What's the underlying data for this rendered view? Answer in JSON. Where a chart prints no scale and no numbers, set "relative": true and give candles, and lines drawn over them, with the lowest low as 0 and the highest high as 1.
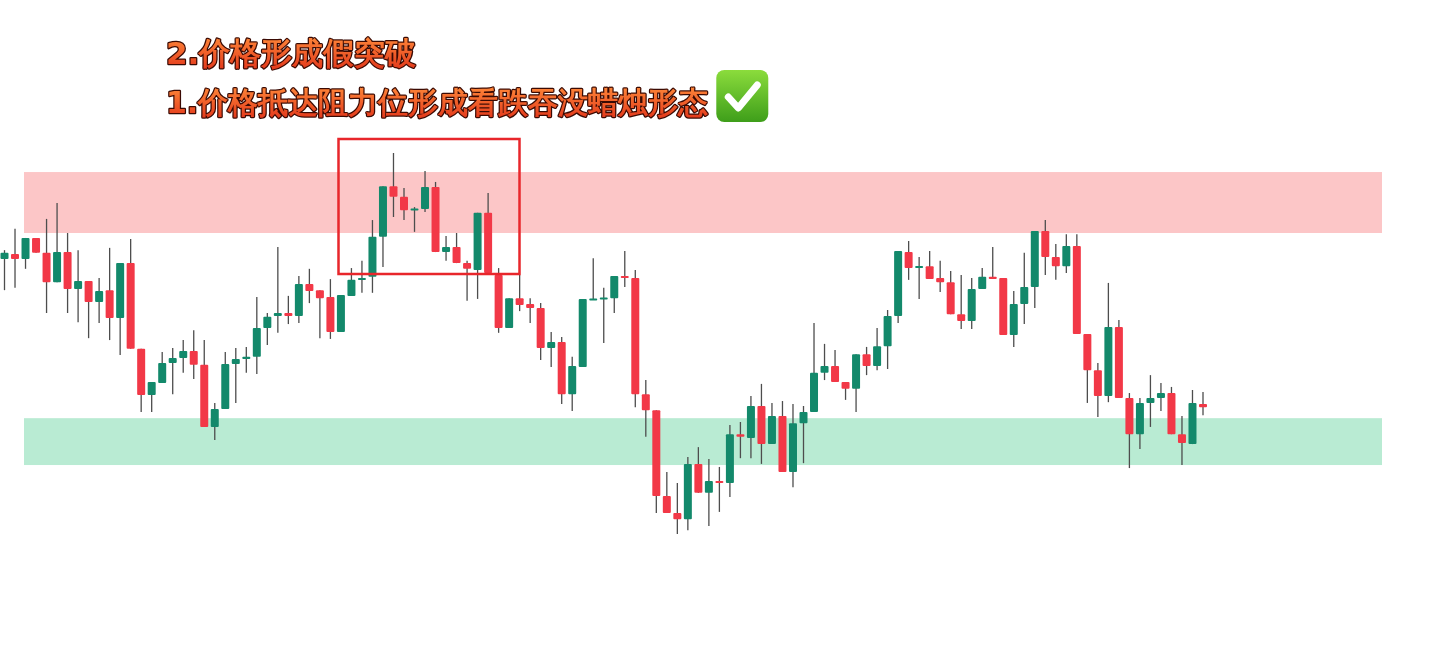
{
  "chart_data": {
    "type": "candlestick",
    "relative": true,
    "annotations": [
      "2.价格形成假突破",
      "1.价格抵达阻力位形成看跌吞没蜡烛形态"
    ],
    "categories": [
      null,
      null,
      null,
      null,
      null,
      null,
      null,
      null,
      null,
      null,
      null,
      null,
      null,
      null,
      null,
      null,
      null,
      null,
      null,
      null,
      null,
      null,
      null,
      null,
      null,
      null,
      null,
      null,
      null,
      null,
      null,
      null,
      null,
      null,
      null,
      null,
      null,
      null,
      null,
      null,
      null,
      null,
      null,
      null,
      null,
      null,
      null,
      null,
      null,
      null,
      null,
      null,
      null,
      null,
      null,
      null,
      null,
      null,
      null,
      null,
      null,
      null,
      null,
      null,
      null,
      null,
      null,
      null,
      null,
      null,
      null,
      null,
      null,
      null,
      null,
      null,
      null,
      null,
      null,
      null,
      null,
      null,
      null,
      null,
      null,
      null,
      null,
      null,
      null,
      null,
      null,
      null,
      null,
      null,
      null,
      null,
      null,
      null,
      null,
      null,
      null,
      null,
      null,
      null,
      null,
      null,
      null,
      null,
      null,
      null,
      null,
      null,
      null,
      null,
      null
    ],
    "ohlc": [
      [
        0.722,
        0.745,
        0.64,
        0.738
      ],
      [
        0.735,
        0.801,
        0.646,
        0.722
      ],
      [
        0.722,
        0.777,
        0.696,
        0.777
      ],
      [
        0.777,
        0.777,
        0.738,
        0.738
      ],
      [
        0.738,
        0.827,
        0.58,
        0.661
      ],
      [
        0.661,
        0.869,
        0.661,
        0.74
      ],
      [
        0.74,
        0.79,
        0.58,
        0.643
      ],
      [
        0.643,
        0.745,
        0.556,
        0.664
      ],
      [
        0.664,
        0.664,
        0.514,
        0.609
      ],
      [
        0.609,
        0.672,
        0.554,
        0.638
      ],
      [
        0.64,
        0.751,
        0.509,
        0.567
      ],
      [
        0.567,
        0.711,
        0.47,
        0.711
      ],
      [
        0.711,
        0.774,
        0.486,
        0.486
      ],
      [
        0.486,
        0.486,
        0.32,
        0.365
      ],
      [
        0.365,
        0.399,
        0.32,
        0.399
      ],
      [
        0.396,
        0.478,
        0.396,
        0.449
      ],
      [
        0.449,
        0.488,
        0.367,
        0.462
      ],
      [
        0.462,
        0.509,
        0.423,
        0.48
      ],
      [
        0.48,
        0.535,
        0.407,
        0.444
      ],
      [
        0.444,
        0.509,
        0.281,
        0.281
      ],
      [
        0.281,
        0.344,
        0.247,
        0.328
      ],
      [
        0.328,
        0.478,
        0.328,
        0.446
      ],
      [
        0.446,
        0.488,
        0.344,
        0.459
      ],
      [
        0.459,
        0.491,
        0.423,
        0.465
      ],
      [
        0.465,
        0.622,
        0.42,
        0.541
      ],
      [
        0.541,
        0.58,
        0.496,
        0.57
      ],
      [
        0.572,
        0.753,
        0.528,
        0.58
      ],
      [
        0.58,
        0.625,
        0.551,
        0.572
      ],
      [
        0.572,
        0.677,
        0.554,
        0.656
      ],
      [
        0.656,
        0.696,
        0.606,
        0.638
      ],
      [
        0.64,
        0.64,
        0.514,
        0.619
      ],
      [
        0.622,
        0.669,
        0.512,
        0.53
      ],
      [
        0.53,
        0.627,
        0.53,
        0.627
      ],
      [
        0.625,
        0.698,
        0.625,
        0.667
      ],
      [
        0.667,
        0.717,
        0.633,
        0.672
      ],
      [
        0.675,
        0.824,
        0.633,
        0.78
      ],
      [
        0.78,
        0.913,
        0.701,
        0.913
      ],
      [
        0.913,
        1.0,
        0.832,
        0.885
      ],
      [
        0.885,
        0.908,
        0.824,
        0.85
      ],
      [
        0.85,
        0.858,
        0.793,
        0.853
      ],
      [
        0.853,
        0.953,
        0.845,
        0.911
      ],
      [
        0.911,
        0.924,
        0.74,
        0.74
      ],
      [
        0.74,
        0.782,
        0.717,
        0.753
      ],
      [
        0.753,
        0.79,
        0.711,
        0.711
      ],
      [
        0.711,
        0.717,
        0.612,
        0.696
      ],
      [
        0.693,
        0.843,
        0.617,
        0.843
      ],
      [
        0.843,
        0.895,
        0.685,
        0.685
      ],
      [
        0.68,
        0.698,
        0.528,
        0.541
      ],
      [
        0.541,
        0.619,
        0.541,
        0.619
      ],
      [
        0.619,
        0.68,
        0.585,
        0.601
      ],
      [
        0.604,
        0.619,
        0.554,
        0.593
      ],
      [
        0.593,
        0.606,
        0.457,
        0.488
      ],
      [
        0.488,
        0.53,
        0.438,
        0.504
      ],
      [
        0.504,
        0.517,
        0.341,
        0.367
      ],
      [
        0.367,
        0.465,
        0.323,
        0.441
      ],
      [
        0.438,
        0.617,
        0.438,
        0.617
      ],
      [
        0.614,
        0.724,
        0.614,
        0.617
      ],
      [
        0.617,
        0.646,
        0.501,
        0.619
      ],
      [
        0.619,
        0.677,
        0.58,
        0.677
      ],
      [
        0.677,
        0.743,
        0.648,
        0.672
      ],
      [
        0.672,
        0.693,
        0.333,
        0.367
      ],
      [
        0.367,
        0.404,
        0.255,
        0.325
      ],
      [
        0.325,
        0.325,
        0.055,
        0.1
      ],
      [
        0.1,
        0.163,
        0.055,
        0.055
      ],
      [
        0.055,
        0.134,
        0.0,
        0.039
      ],
      [
        0.039,
        0.202,
        0.01,
        0.184
      ],
      [
        0.184,
        0.228,
        0.108,
        0.108
      ],
      [
        0.108,
        0.197,
        0.021,
        0.139
      ],
      [
        0.139,
        0.176,
        0.058,
        0.134
      ],
      [
        0.134,
        0.286,
        0.097,
        0.262
      ],
      [
        0.262,
        0.294,
        0.199,
        0.255
      ],
      [
        0.252,
        0.362,
        0.199,
        0.336
      ],
      [
        0.336,
        0.394,
        0.184,
        0.236
      ],
      [
        0.236,
        0.344,
        0.236,
        0.31
      ],
      [
        0.31,
        0.349,
        0.163,
        0.163
      ],
      [
        0.163,
        0.341,
        0.123,
        0.291
      ],
      [
        0.291,
        0.336,
        0.186,
        0.32
      ],
      [
        0.32,
        0.554,
        0.32,
        0.423
      ],
      [
        0.423,
        0.499,
        0.404,
        0.441
      ],
      [
        0.441,
        0.483,
        0.399,
        0.399
      ],
      [
        0.399,
        0.399,
        0.352,
        0.381
      ],
      [
        0.381,
        0.472,
        0.32,
        0.472
      ],
      [
        0.472,
        0.491,
        0.417,
        0.441
      ],
      [
        0.441,
        0.541,
        0.43,
        0.493
      ],
      [
        0.493,
        0.588,
        0.433,
        0.572
      ],
      [
        0.572,
        0.743,
        0.554,
        0.743
      ],
      [
        0.74,
        0.769,
        0.667,
        0.698
      ],
      [
        0.698,
        0.727,
        0.617,
        0.703
      ],
      [
        0.703,
        0.743,
        0.669,
        0.669
      ],
      [
        0.672,
        0.717,
        0.635,
        0.661
      ],
      [
        0.661,
        0.69,
        0.577,
        0.577
      ],
      [
        0.577,
        0.68,
        0.538,
        0.559
      ],
      [
        0.559,
        0.672,
        0.538,
        0.643
      ],
      [
        0.643,
        0.698,
        0.643,
        0.675
      ],
      [
        0.675,
        0.753,
        0.669,
        0.669
      ],
      [
        0.672,
        0.672,
        0.522,
        0.522
      ],
      [
        0.522,
        0.638,
        0.491,
        0.604
      ],
      [
        0.604,
        0.738,
        0.551,
        0.648
      ],
      [
        0.648,
        0.795,
        0.593,
        0.795
      ],
      [
        0.795,
        0.824,
        0.68,
        0.727
      ],
      [
        0.727,
        0.761,
        0.667,
        0.703
      ],
      [
        0.703,
        0.787,
        0.685,
        0.756
      ],
      [
        0.756,
        0.787,
        0.525,
        0.525
      ],
      [
        0.525,
        0.525,
        0.344,
        0.43
      ],
      [
        0.43,
        0.449,
        0.307,
        0.362
      ],
      [
        0.362,
        0.659,
        0.346,
        0.543
      ],
      [
        0.543,
        0.562,
        0.357,
        0.357
      ],
      [
        0.357,
        0.37,
        0.173,
        0.262
      ],
      [
        0.262,
        0.357,
        0.223,
        0.344
      ],
      [
        0.344,
        0.417,
        0.281,
        0.357
      ],
      [
        0.357,
        0.396,
        0.323,
        0.37
      ],
      [
        0.37,
        0.386,
        0.262,
        0.262
      ],
      [
        0.262,
        0.31,
        0.181,
        0.239
      ],
      [
        0.236,
        0.378,
        0.236,
        0.344
      ],
      [
        0.341,
        0.373,
        0.312,
        0.333
      ]
    ],
    "colors": [
      "#13896b",
      "#f23847",
      "#13896b",
      "#f23847",
      "#f23847",
      "#13896b",
      "#f23847",
      "#13896b",
      "#f23847",
      "#13896b",
      "#f23847",
      "#13896b",
      "#f23847",
      "#f23847",
      "#13896b",
      "#13896b",
      "#13896b",
      "#13896b",
      "#f23847",
      "#f23847",
      "#13896b",
      "#13896b",
      "#13896b",
      "#13896b",
      "#13896b",
      "#13896b",
      "#13896b",
      "#f23847",
      "#13896b",
      "#f23847",
      "#f23847",
      "#f23847",
      "#13896b",
      "#13896b",
      "#13896b",
      "#13896b",
      "#13896b",
      "#f23847",
      "#f23847",
      "#13896b",
      "#13896b",
      "#f23847",
      "#13896b",
      "#f23847",
      "#f23847",
      "#13896b",
      "#f23847",
      "#f23847",
      "#13896b",
      "#f23847",
      "#f23847",
      "#f23847",
      "#13896b",
      "#f23847",
      "#13896b",
      "#13896b",
      "#13896b",
      "#13896b",
      "#13896b",
      "#f23847",
      "#f23847",
      "#f23847",
      "#f23847",
      "#f23847",
      "#f23847",
      "#13896b",
      "#f23847",
      "#13896b",
      "#f23847",
      "#13896b",
      "#f23847",
      "#13896b",
      "#f23847",
      "#13896b",
      "#f23847",
      "#13896b",
      "#13896b",
      "#13896b",
      "#13896b",
      "#f23847",
      "#f23847",
      "#13896b",
      "#f23847",
      "#13896b",
      "#13896b",
      "#13896b",
      "#f23847",
      "#13896b",
      "#f23847",
      "#f23847",
      "#f23847",
      "#f23847",
      "#13896b",
      "#13896b",
      "#f23847",
      "#f23847",
      "#13896b",
      "#13896b",
      "#13896b",
      "#f23847",
      "#f23847",
      "#13896b",
      "#f23847",
      "#f23847",
      "#f23847",
      "#13896b",
      "#f23847",
      "#f23847",
      "#13896b",
      "#13896b",
      "#13896b",
      "#f23847",
      "#f23847",
      "#13896b",
      "#f23847"
    ],
    "bands": [
      {
        "axis": "y",
        "from": 0.79,
        "to": 0.95,
        "color": "#fcc6c7"
      },
      {
        "axis": "y",
        "from": 0.181,
        "to": 0.304,
        "color": "#b9ebd3"
      }
    ]
  }
}
